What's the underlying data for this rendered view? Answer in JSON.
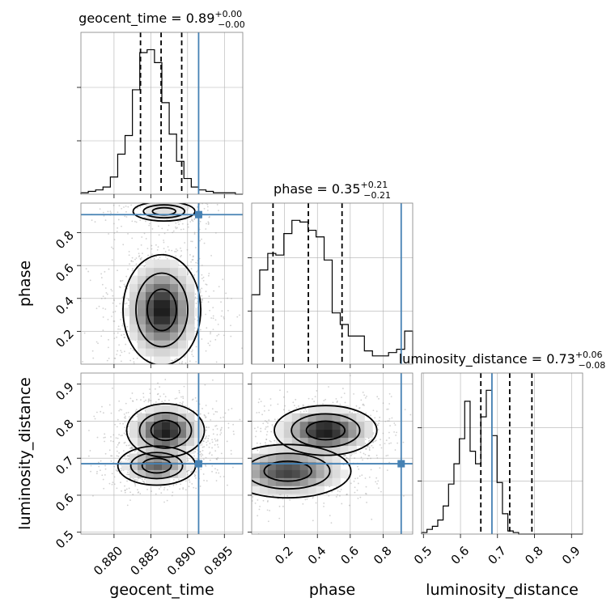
{
  "chart_data": {
    "type": "corner",
    "parameters": [
      {
        "name": "geocent_time",
        "axis_label": "geocent_time",
        "range": [
          0.8755,
          0.8975
        ],
        "ticks": [
          0.88,
          0.885,
          0.89,
          0.895
        ],
        "tick_labels": [
          "0.880",
          "0.885",
          "0.890",
          "0.895"
        ],
        "title_label": "geocent_time = ",
        "title_value": "0.89",
        "title_sup": "+0.00",
        "title_sub": "−0.00",
        "median": 0.8864,
        "q16": 0.8836,
        "q84": 0.8892,
        "truth": 0.8915,
        "hist_edges_start": 0.8755,
        "hist_bin_width": 0.001,
        "hist_counts": [
          1,
          2,
          3,
          5,
          12,
          28,
          41,
          73,
          99,
          101,
          92,
          64,
          42,
          23,
          11,
          5,
          3,
          2,
          1,
          1,
          1,
          0
        ]
      },
      {
        "name": "phase",
        "axis_label": "phase",
        "range": [
          0.0,
          0.98
        ],
        "ticks": [
          0.2,
          0.4,
          0.6,
          0.8
        ],
        "tick_labels": [
          "0.2",
          "0.4",
          "0.6",
          "0.8"
        ],
        "title_label": "phase = ",
        "title_value": "0.35",
        "title_sup": "+0.21",
        "title_sub": "−0.21",
        "median": 0.345,
        "q16": 0.13,
        "q84": 0.55,
        "truth": 0.91,
        "hist_edges_start": 0.0,
        "hist_bin_width": 0.049,
        "hist_counts": [
          42,
          57,
          67,
          66,
          79,
          87,
          86,
          81,
          77,
          63,
          31,
          24,
          17,
          17,
          8,
          5,
          5,
          7,
          9,
          20
        ]
      },
      {
        "name": "luminosity_distance",
        "axis_label": "luminosity_distance",
        "range": [
          0.495,
          0.93
        ],
        "ticks": [
          0.5,
          0.6,
          0.7,
          0.8,
          0.9
        ],
        "tick_labels": [
          "0.5",
          "0.6",
          "0.7",
          "0.8",
          "0.9"
        ],
        "title_label": "luminosity_distance = ",
        "title_value": "0.73",
        "title_sup": "+0.06",
        "title_sub": "−0.08",
        "median": 0.733,
        "q16": 0.655,
        "q84": 0.793,
        "truth": 0.685,
        "hist_edges_start": 0.495,
        "hist_bin_width": 0.01456,
        "hist_counts": [
          1,
          3,
          5,
          9,
          18,
          32,
          45,
          61,
          85,
          53,
          45,
          75,
          92,
          63,
          33,
          13,
          2,
          1,
          0,
          0,
          0,
          0,
          0,
          0,
          0,
          0,
          0,
          0,
          0,
          0
        ]
      }
    ],
    "contour_levels": [
      "0.39",
      "0.86",
      "0.99"
    ],
    "grid": true
  }
}
